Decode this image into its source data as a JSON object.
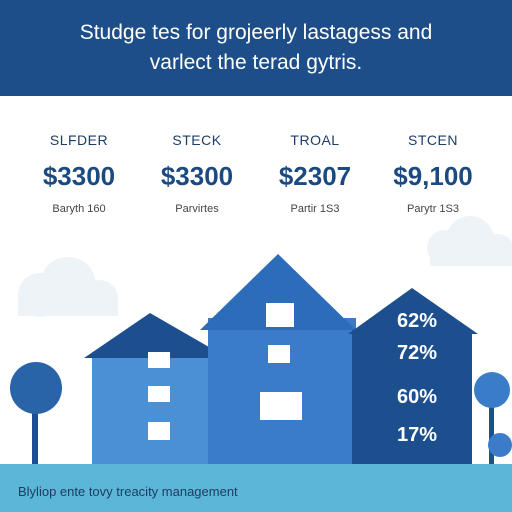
{
  "banner": {
    "line1": "Studge tes for grojeerly lastagess and",
    "line2": "varlect the terad gytris."
  },
  "stats": [
    {
      "label": "SLFDER",
      "value": "$3300",
      "sub": "Baryth 160"
    },
    {
      "label": "STECK",
      "value": "$3300",
      "sub": "Parvirtes"
    },
    {
      "label": "TROAL",
      "value": "$2307",
      "sub": "Partir 1S3"
    },
    {
      "label": "STCEN",
      "value": "$9,100",
      "sub": "Parytr 1S3"
    }
  ],
  "percentages": [
    "62%",
    "72%",
    "60%",
    "17%"
  ],
  "footer": {
    "text": "Blyliop ente tovy treacity management"
  },
  "colors": {
    "banner": "#1d4e89",
    "house_light": "#4a90d4",
    "house_mid": "#3a7cc7",
    "house_dark": "#1d4f8f",
    "footer": "#5bb6d8",
    "cloud": "#eef3f8"
  }
}
